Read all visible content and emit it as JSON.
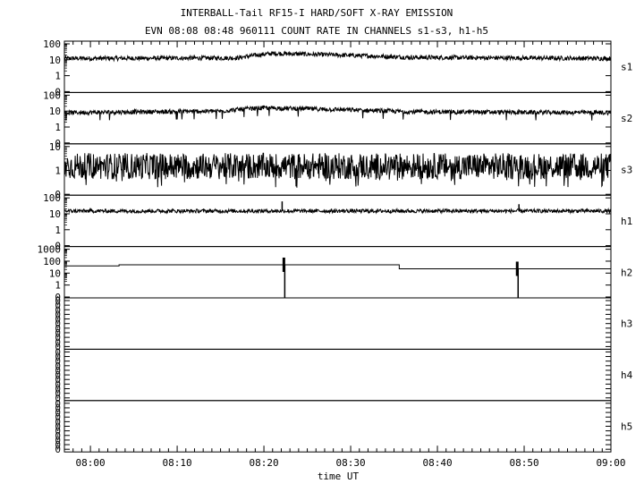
{
  "chart_data": {
    "type": "line",
    "title": "INTERBALL-Tail RF15-I HARD/SOFT X-RAY EMISSION",
    "subtitle": "EVN 08:08 08:48 960111  COUNT RATE IN CHANNELS s1-s3, h1-h5",
    "xlabel": "time UT",
    "x_ticks": [
      "08:00",
      "08:10",
      "08:20",
      "08:30",
      "08:40",
      "08:50",
      "09:00"
    ],
    "x_range": [
      "07:57",
      "09:00"
    ],
    "grid": false,
    "panels": [
      {
        "name": "s1",
        "y_scale": "log",
        "y_tick_labels": [
          "100",
          "10",
          "1",
          "0"
        ],
        "series_desc": [
          [
            0,
            12
          ],
          [
            20,
            13
          ],
          [
            24,
            25
          ],
          [
            40,
            14
          ],
          [
            63,
            12
          ]
        ]
      },
      {
        "name": "s2",
        "y_scale": "log",
        "y_tick_labels": [
          "100",
          "10",
          "1",
          "0"
        ],
        "series_desc": [
          [
            0,
            8
          ],
          [
            18,
            10
          ],
          [
            23,
            16
          ],
          [
            40,
            9
          ],
          [
            63,
            8
          ]
        ]
      },
      {
        "name": "s3",
        "y_scale": "log",
        "y_tick_labels": [
          "10",
          "1",
          "0"
        ],
        "series_desc": [
          [
            0,
            1.5
          ],
          [
            63,
            1.5
          ]
        ]
      },
      {
        "name": "h1",
        "y_scale": "log",
        "y_tick_labels": [
          "100",
          "10",
          "1",
          "0"
        ],
        "series_desc": [
          [
            0,
            15
          ],
          [
            63,
            15
          ]
        ],
        "spikes": [
          [
            25.1,
            60
          ],
          [
            52.4,
            40
          ]
        ]
      },
      {
        "name": "h2",
        "y_scale": "log",
        "y_tick_labels": [
          "1000",
          "100",
          "10",
          "1",
          "0"
        ],
        "step_series": [
          [
            0,
            40
          ],
          [
            6.3,
            50
          ],
          [
            38.5,
            50
          ],
          [
            38.6,
            23
          ],
          [
            63,
            14
          ]
        ],
        "spikes": [
          [
            25.3,
            0
          ],
          [
            52.2,
            0
          ]
        ]
      },
      {
        "name": "h3",
        "y_scale": "linear",
        "y_tick_labels": [
          "0",
          "0",
          "0",
          "0",
          "0",
          "0",
          "0",
          "0",
          "0",
          "0",
          "0"
        ]
      },
      {
        "name": "h4",
        "y_scale": "linear",
        "y_tick_labels": [
          "0",
          "0",
          "0",
          "0",
          "0",
          "0",
          "0",
          "0",
          "0",
          "0",
          "0"
        ]
      },
      {
        "name": "h5",
        "y_scale": "linear",
        "y_tick_labels": [
          "0",
          "0",
          "0",
          "0",
          "0",
          "0",
          "0",
          "0",
          "0",
          "0",
          "0"
        ]
      }
    ]
  }
}
